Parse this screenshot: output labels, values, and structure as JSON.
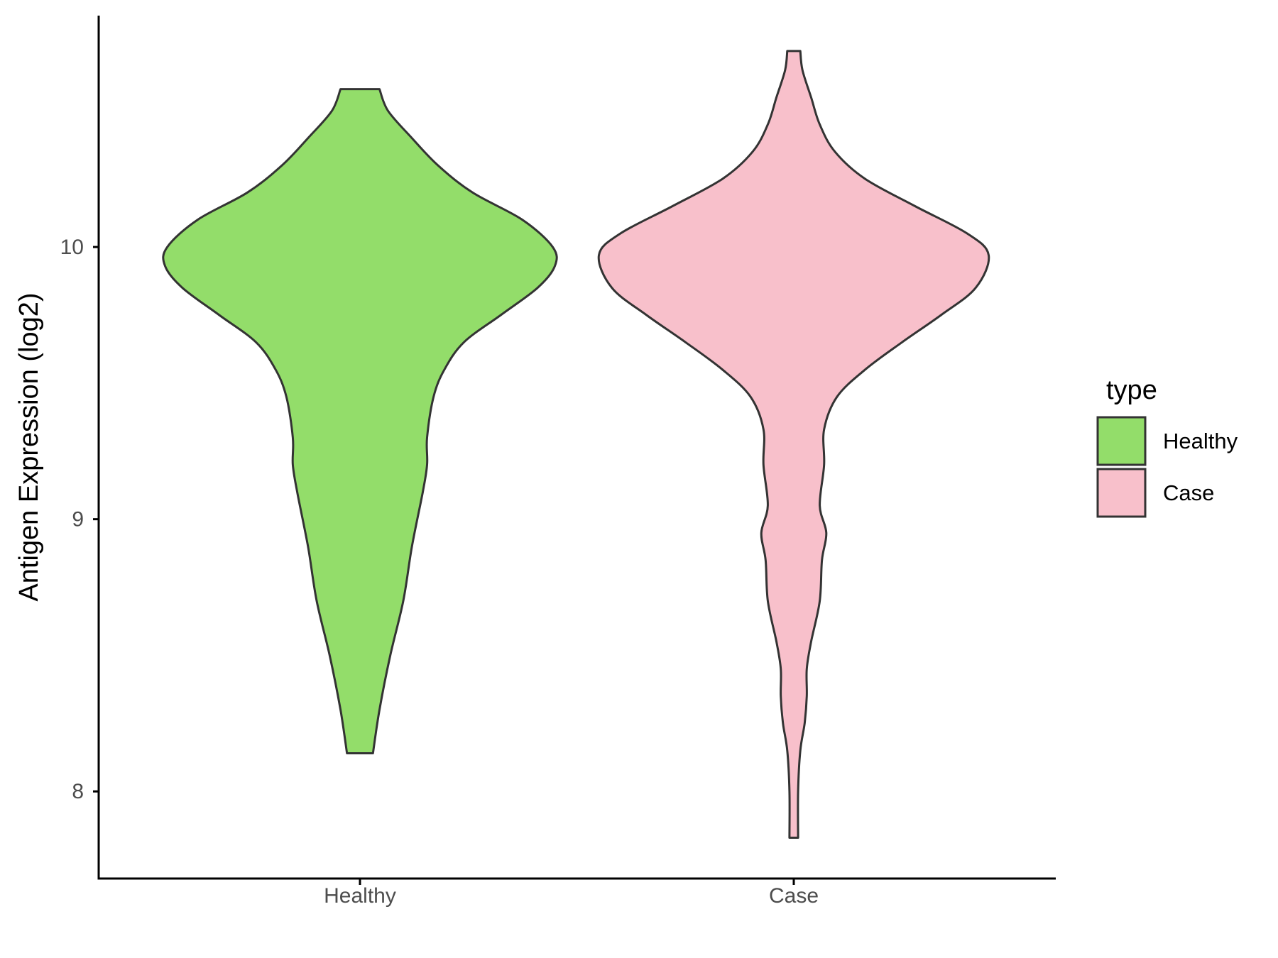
{
  "chart_data": {
    "type": "violin",
    "title": "",
    "xlabel": "",
    "ylabel": "Antigen Expression (log2)",
    "ylim": [
      7.68,
      10.85
    ],
    "yticks": [
      8,
      9,
      10
    ],
    "grid": false,
    "categories": [
      "Healthy",
      "Case"
    ],
    "legend": {
      "title": "type",
      "placement": "right",
      "entries": [
        {
          "label": "Healthy",
          "color": "#93DD6A"
        },
        {
          "label": "Case",
          "color": "#F8C0CB"
        }
      ]
    },
    "series": [
      {
        "name": "Healthy",
        "color": "#93DD6A",
        "y_min": 8.14,
        "y_max": 10.58,
        "profile": [
          [
            8.14,
            0.06
          ],
          [
            8.3,
            0.09
          ],
          [
            8.5,
            0.14
          ],
          [
            8.7,
            0.2
          ],
          [
            8.9,
            0.24
          ],
          [
            9.1,
            0.29
          ],
          [
            9.2,
            0.31
          ],
          [
            9.3,
            0.31
          ],
          [
            9.45,
            0.34
          ],
          [
            9.55,
            0.39
          ],
          [
            9.65,
            0.48
          ],
          [
            9.75,
            0.65
          ],
          [
            9.85,
            0.82
          ],
          [
            9.93,
            0.9
          ],
          [
            10.0,
            0.89
          ],
          [
            10.1,
            0.75
          ],
          [
            10.2,
            0.52
          ],
          [
            10.3,
            0.36
          ],
          [
            10.4,
            0.24
          ],
          [
            10.5,
            0.13
          ],
          [
            10.58,
            0.09
          ]
        ]
      },
      {
        "name": "Case",
        "color": "#F8C0CB",
        "y_min": 7.83,
        "y_max": 10.72,
        "profile": [
          [
            7.83,
            0.02
          ],
          [
            8.0,
            0.02
          ],
          [
            8.15,
            0.03
          ],
          [
            8.25,
            0.05
          ],
          [
            8.35,
            0.06
          ],
          [
            8.45,
            0.06
          ],
          [
            8.55,
            0.08
          ],
          [
            8.7,
            0.12
          ],
          [
            8.85,
            0.13
          ],
          [
            8.95,
            0.15
          ],
          [
            9.05,
            0.12
          ],
          [
            9.2,
            0.14
          ],
          [
            9.33,
            0.14
          ],
          [
            9.45,
            0.2
          ],
          [
            9.55,
            0.33
          ],
          [
            9.65,
            0.5
          ],
          [
            9.75,
            0.68
          ],
          [
            9.85,
            0.84
          ],
          [
            9.97,
            0.9
          ],
          [
            10.05,
            0.8
          ],
          [
            10.15,
            0.56
          ],
          [
            10.25,
            0.33
          ],
          [
            10.35,
            0.19
          ],
          [
            10.45,
            0.12
          ],
          [
            10.55,
            0.08
          ],
          [
            10.65,
            0.04
          ],
          [
            10.72,
            0.03
          ]
        ]
      }
    ]
  }
}
